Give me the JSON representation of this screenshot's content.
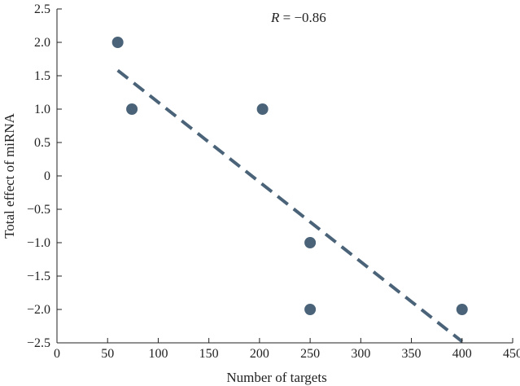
{
  "chart_data": {
    "type": "scatter",
    "title": "",
    "xlabel": "Number of targets",
    "ylabel": "Total effect of miRNA",
    "xlim": [
      0,
      450
    ],
    "ylim": [
      -2.5,
      2.5
    ],
    "x_ticks": [
      0,
      50,
      100,
      150,
      200,
      250,
      300,
      350,
      400,
      450
    ],
    "x_tick_labels": [
      "0",
      "50",
      "100",
      "150",
      "200",
      "250",
      "300",
      "350",
      "400",
      "450"
    ],
    "y_ticks": [
      2.5,
      2.0,
      1.5,
      1.0,
      0.5,
      0,
      -0.5,
      -1.0,
      -1.5,
      -2.0,
      -2.5
    ],
    "y_tick_labels": [
      "2.5",
      "2.0",
      "1.5",
      "1.0",
      "0.5",
      "0",
      "−0.5",
      "−1.0",
      "−1.5",
      "−2.0",
      "−2.5"
    ],
    "grid": false,
    "series": [
      {
        "points": [
          {
            "x": 60,
            "y": 2.0
          },
          {
            "x": 74,
            "y": 1.0
          },
          {
            "x": 203,
            "y": 1.0
          },
          {
            "x": 250,
            "y": -1.0
          },
          {
            "x": 250,
            "y": -2.0
          },
          {
            "x": 400,
            "y": -2.0
          }
        ]
      }
    ],
    "trend_line": {
      "style": "dashed",
      "x1": 60,
      "y1": 1.58,
      "x2": 400,
      "y2": -2.48
    },
    "annotation": {
      "italic_part": "R",
      "rest": " = −0.86",
      "x": 200,
      "y": 2.45
    },
    "colors": {
      "marker": "#4a6378",
      "trend": "#4a6378",
      "axis": "#222222"
    }
  }
}
